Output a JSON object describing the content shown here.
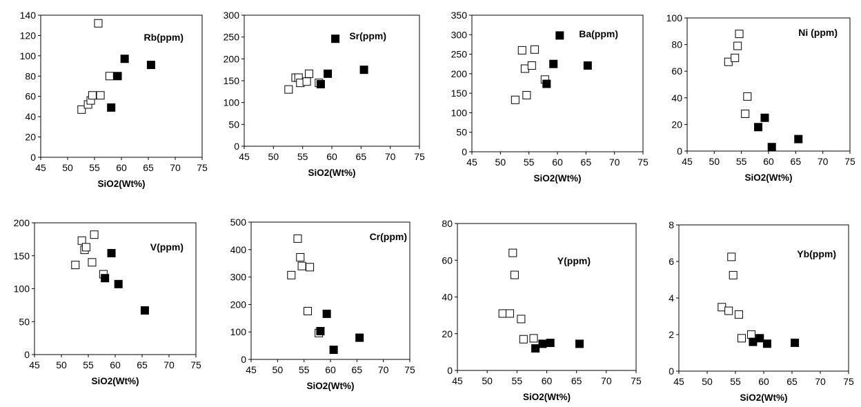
{
  "figure": {
    "colors": {
      "axis": "#000000",
      "open_marker_stroke": "#000000",
      "filled_marker": "#000000",
      "background": "#ffffff"
    },
    "marker_styles": [
      "open-square",
      "filled-square"
    ]
  },
  "chart_data": [
    {
      "type": "scatter",
      "title": "Rb(ppm)",
      "xlabel": "SiO2(Wt%)",
      "ylabel": "",
      "xlim": [
        45,
        75
      ],
      "ylim": [
        0,
        140
      ],
      "xticks": [
        45,
        50,
        55,
        60,
        65,
        70,
        75
      ],
      "yticks": [
        0,
        20,
        40,
        60,
        80,
        100,
        120,
        140
      ],
      "grid": false,
      "series": [
        {
          "marker": "open-square",
          "points": [
            [
              52.6,
              47
            ],
            [
              53.8,
              52
            ],
            [
              54.3,
              56
            ],
            [
              54.6,
              61
            ],
            [
              55.7,
              132
            ],
            [
              56.1,
              61
            ],
            [
              57.8,
              80
            ]
          ]
        },
        {
          "marker": "filled-square",
          "points": [
            [
              58.1,
              49
            ],
            [
              59.3,
              80
            ],
            [
              60.6,
              97
            ],
            [
              65.5,
              91
            ]
          ]
        }
      ]
    },
    {
      "type": "scatter",
      "title": "Sr(ppm)",
      "xlabel": "SiO2(Wt%)",
      "ylabel": "",
      "xlim": [
        45,
        75
      ],
      "ylim": [
        0,
        300
      ],
      "xticks": [
        45,
        50,
        55,
        60,
        65,
        70,
        75
      ],
      "yticks": [
        0,
        50,
        100,
        150,
        200,
        250,
        300
      ],
      "grid": false,
      "series": [
        {
          "marker": "open-square",
          "points": [
            [
              52.6,
              130
            ],
            [
              53.8,
              157
            ],
            [
              54.3,
              157
            ],
            [
              54.6,
              145
            ],
            [
              55.7,
              148
            ],
            [
              56.1,
              166
            ],
            [
              57.8,
              145
            ]
          ]
        },
        {
          "marker": "filled-square",
          "points": [
            [
              58.1,
              142
            ],
            [
              59.3,
              166
            ],
            [
              60.6,
              246
            ],
            [
              65.5,
              175
            ]
          ]
        }
      ]
    },
    {
      "type": "scatter",
      "title": "Ba(ppm)",
      "xlabel": "SiO2(Wt%)",
      "ylabel": "",
      "xlim": [
        45,
        75
      ],
      "ylim": [
        0,
        350
      ],
      "xticks": [
        45,
        50,
        55,
        60,
        65,
        70,
        75
      ],
      "yticks": [
        0,
        50,
        100,
        150,
        200,
        250,
        300,
        350
      ],
      "grid": false,
      "series": [
        {
          "marker": "open-square",
          "points": [
            [
              52.6,
              133
            ],
            [
              53.8,
              260
            ],
            [
              54.3,
              213
            ],
            [
              54.6,
              145
            ],
            [
              55.5,
              221
            ],
            [
              56.0,
              262
            ],
            [
              57.8,
              185
            ]
          ]
        },
        {
          "marker": "filled-square",
          "points": [
            [
              58.1,
              174
            ],
            [
              59.3,
              225
            ],
            [
              60.4,
              298
            ],
            [
              65.3,
              221
            ]
          ]
        }
      ]
    },
    {
      "type": "scatter",
      "title": "Ni (ppm)",
      "xlabel": "SiO2(Wt%)",
      "ylabel": "",
      "xlim": [
        45,
        75
      ],
      "ylim": [
        0,
        100
      ],
      "xticks": [
        45,
        50,
        55,
        60,
        65,
        70,
        75
      ],
      "yticks": [
        0,
        20,
        40,
        60,
        80,
        100
      ],
      "grid": false,
      "series": [
        {
          "marker": "open-square",
          "points": [
            [
              52.6,
              67
            ],
            [
              53.8,
              70
            ],
            [
              54.3,
              79
            ],
            [
              54.6,
              88
            ],
            [
              55.7,
              28
            ],
            [
              56.1,
              41
            ]
          ]
        },
        {
          "marker": "filled-square",
          "points": [
            [
              58.1,
              18
            ],
            [
              59.3,
              25
            ],
            [
              60.6,
              3
            ],
            [
              65.5,
              9
            ]
          ]
        }
      ]
    },
    {
      "type": "scatter",
      "title": "V(ppm)",
      "xlabel": "SiO2(Wt%)",
      "ylabel": "",
      "xlim": [
        45,
        75
      ],
      "ylim": [
        0,
        200
      ],
      "xticks": [
        45,
        50,
        55,
        60,
        65,
        70,
        75
      ],
      "yticks": [
        0,
        50,
        100,
        150,
        200
      ],
      "grid": false,
      "series": [
        {
          "marker": "open-square",
          "points": [
            [
              52.6,
              136
            ],
            [
              53.8,
              173
            ],
            [
              54.3,
              159
            ],
            [
              54.6,
              163
            ],
            [
              55.7,
              140
            ],
            [
              56.1,
              182
            ],
            [
              57.8,
              122
            ]
          ]
        },
        {
          "marker": "filled-square",
          "points": [
            [
              58.1,
              116
            ],
            [
              59.3,
              154
            ],
            [
              60.6,
              107
            ],
            [
              65.5,
              67
            ]
          ]
        }
      ]
    },
    {
      "type": "scatter",
      "title": "Cr(ppm)",
      "xlabel": "SiO2(Wt%)",
      "ylabel": "",
      "xlim": [
        45,
        75
      ],
      "ylim": [
        0,
        500
      ],
      "xticks": [
        45,
        50,
        55,
        60,
        65,
        70,
        75
      ],
      "yticks": [
        0,
        100,
        200,
        300,
        400,
        500
      ],
      "grid": false,
      "series": [
        {
          "marker": "open-square",
          "points": [
            [
              52.6,
              307
            ],
            [
              53.8,
              440
            ],
            [
              54.3,
              372
            ],
            [
              54.6,
              340
            ],
            [
              55.7,
              176
            ],
            [
              56.1,
              336
            ],
            [
              57.8,
              96
            ]
          ]
        },
        {
          "marker": "filled-square",
          "points": [
            [
              58.1,
              103
            ],
            [
              59.3,
              166
            ],
            [
              60.6,
              35
            ],
            [
              65.5,
              79
            ]
          ]
        }
      ]
    },
    {
      "type": "scatter",
      "title": "Y(ppm)",
      "xlabel": "SiO2(Wt%)",
      "ylabel": "",
      "xlim": [
        45,
        75
      ],
      "ylim": [
        0,
        80
      ],
      "xticks": [
        45,
        50,
        55,
        60,
        65,
        70,
        75
      ],
      "yticks": [
        0,
        20,
        40,
        60,
        80
      ],
      "grid": false,
      "series": [
        {
          "marker": "open-square",
          "points": [
            [
              52.6,
              31
            ],
            [
              53.8,
              31
            ],
            [
              54.3,
              64
            ],
            [
              54.6,
              52
            ],
            [
              55.7,
              28
            ],
            [
              56.1,
              17
            ],
            [
              57.8,
              17.5
            ]
          ]
        },
        {
          "marker": "filled-square",
          "points": [
            [
              58.1,
              12
            ],
            [
              59.3,
              14.5
            ],
            [
              60.6,
              15
            ],
            [
              65.5,
              14.5
            ]
          ]
        }
      ]
    },
    {
      "type": "scatter",
      "title": "Yb(ppm)",
      "xlabel": "SiO2(Wt%)",
      "ylabel": "",
      "xlim": [
        45,
        75
      ],
      "ylim": [
        0,
        8
      ],
      "xticks": [
        45,
        50,
        55,
        60,
        65,
        70,
        75
      ],
      "yticks": [
        0,
        2,
        4,
        6,
        8
      ],
      "grid": false,
      "series": [
        {
          "marker": "open-square",
          "points": [
            [
              52.6,
              3.5
            ],
            [
              53.8,
              3.3
            ],
            [
              54.3,
              6.25
            ],
            [
              54.6,
              5.25
            ],
            [
              55.6,
              3.1
            ],
            [
              56.1,
              1.8
            ],
            [
              57.8,
              2.0
            ]
          ]
        },
        {
          "marker": "filled-square",
          "points": [
            [
              58.1,
              1.6
            ],
            [
              59.3,
              1.8
            ],
            [
              60.6,
              1.5
            ],
            [
              65.5,
              1.55
            ]
          ]
        }
      ]
    }
  ]
}
